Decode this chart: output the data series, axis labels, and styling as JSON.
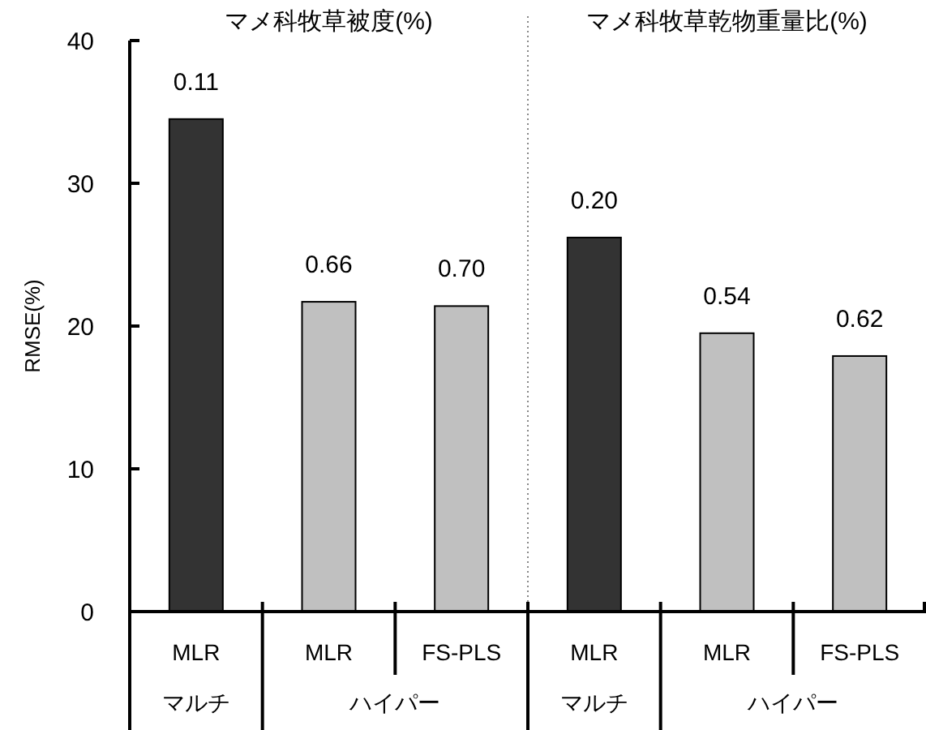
{
  "chart_data": {
    "type": "bar",
    "ylabel": "RMSE(%)",
    "categories": [
      "MLR",
      "MLR",
      "FS-PLS",
      "MLR",
      "MLR",
      "FS-PLS"
    ],
    "values": [
      34.5,
      21.7,
      21.4,
      26.2,
      19.5,
      17.9
    ],
    "colors": [
      "#333333",
      "#c0c0c0",
      "#c0c0c0",
      "#333333",
      "#c0c0c0",
      "#c0c0c0"
    ],
    "ylim": [
      0,
      40
    ],
    "yticks": [
      0,
      10,
      20,
      30,
      40
    ],
    "annotations": [
      "マメ科牧草被度(%)",
      "マメ科牧草乾物重量比(%)",
      "マルチ",
      "ハイパー",
      "マルチ",
      "ハイパー",
      "0.11",
      "0.66",
      "0.70",
      "0.20",
      "0.54",
      "0.62"
    ]
  }
}
